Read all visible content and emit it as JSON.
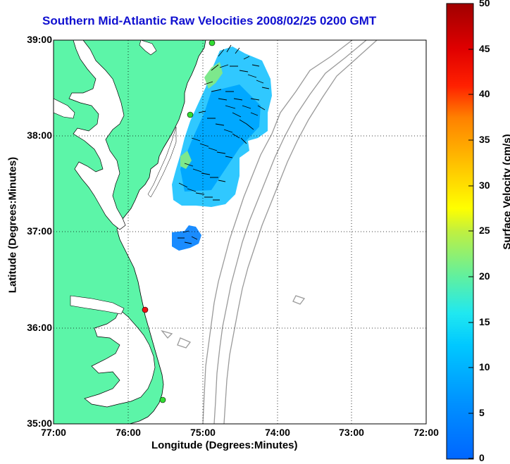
{
  "title": "Southern Mid-Atlantic Raw Velocities 2008/02/25 0200 GMT",
  "xlabel": "Longitude (Degrees:Minutes)",
  "ylabel": "Latitude (Degrees:Minutes)",
  "xticks": [
    "77:00",
    "76:00",
    "75:00",
    "74:00",
    "73:00",
    "72:00"
  ],
  "yticks": [
    "39:00",
    "38:00",
    "37:00",
    "36:00",
    "35:00"
  ],
  "colorbar": {
    "label": "Surface Velocity (cm/s)",
    "ticks": [
      "0",
      "5",
      "10",
      "15",
      "20",
      "25",
      "30",
      "35",
      "40",
      "45",
      "50"
    ],
    "range": [
      0,
      50
    ],
    "colormap": "jet"
  },
  "map": {
    "lon_range": [
      -77,
      -72
    ],
    "lat_range": [
      35,
      39
    ],
    "grid": "dotted",
    "land_color": "#5cf5a8",
    "bathymetry_color": "#9a9a9a",
    "station_colors": {
      "active": "#33dd33",
      "inactive": "#ee1111"
    }
  }
}
